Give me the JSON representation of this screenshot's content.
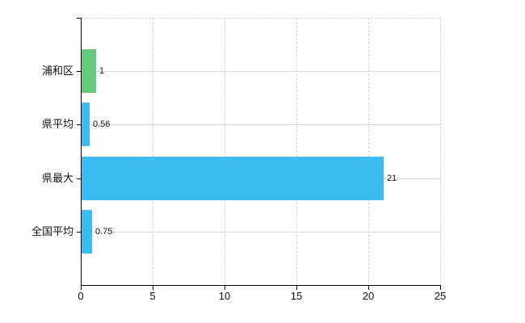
{
  "chart_data": {
    "type": "bar",
    "orientation": "horizontal",
    "title": "",
    "xlabel": "",
    "ylabel": "",
    "categories": [
      "浦和区",
      "県平均",
      "県最大",
      "全国平均"
    ],
    "values": [
      1,
      0.56,
      21,
      0.75
    ],
    "value_labels": [
      "1",
      "0.56",
      "21",
      "0.75"
    ],
    "series_colors": [
      "#66c97d",
      "#3ebcf0",
      "#3ebcf0",
      "#3ebcf0"
    ],
    "x_ticks": [
      0,
      5,
      10,
      15,
      20,
      25
    ],
    "x_tick_labels": [
      "0",
      "5",
      "10",
      "15",
      "20",
      "25"
    ],
    "xlim": [
      0,
      25
    ],
    "grid": true,
    "legend": false
  },
  "colors": {
    "background": "#ffffff",
    "axis": "#000000",
    "gridline": "#d9d9d9",
    "dashed_border": "#d4d4d4",
    "text": "#111111",
    "bar_green": "#66c97d",
    "bar_blue": "#3ebcf0"
  }
}
